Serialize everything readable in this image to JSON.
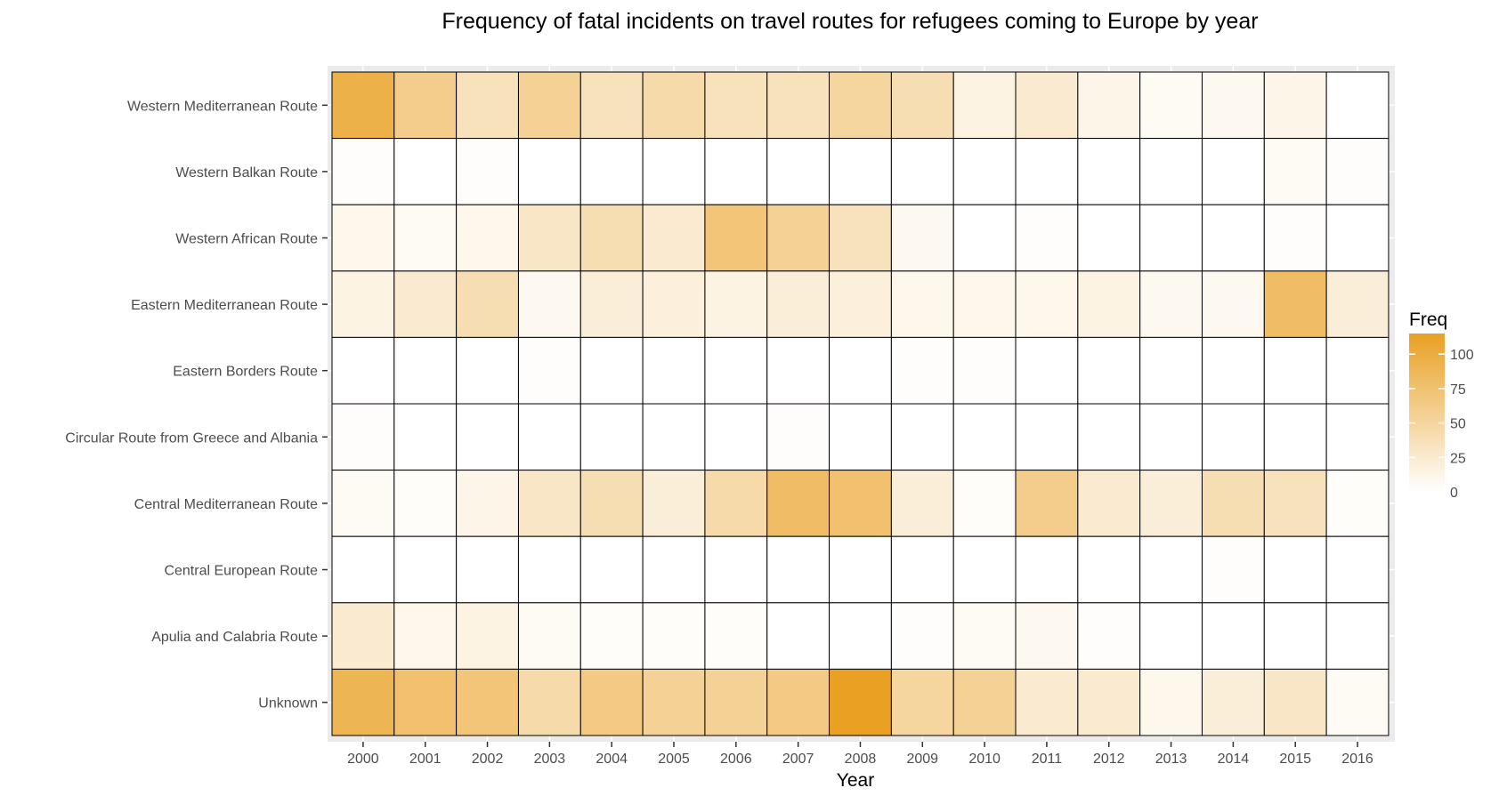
{
  "chart_data": {
    "type": "heatmap",
    "title": "Frequency of fatal incidents on travel routes for refugees coming to Europe by year",
    "xlabel": "Year",
    "ylabel": "",
    "x": [
      "2000",
      "2001",
      "2002",
      "2003",
      "2004",
      "2005",
      "2006",
      "2007",
      "2008",
      "2009",
      "2010",
      "2011",
      "2012",
      "2013",
      "2014",
      "2015",
      "2016"
    ],
    "y": [
      "Western Mediterranean Route",
      "Western Balkan Route",
      "Western African Route",
      "Eastern Mediterranean Route",
      "Eastern Borders Route",
      "Circular Route from Greece and Albania",
      "Central Mediterranean Route",
      "Central European Route",
      "Apulia and Calabria Route",
      "Unknown"
    ],
    "values": [
      [
        95,
        60,
        35,
        55,
        35,
        45,
        35,
        35,
        50,
        40,
        15,
        25,
        12,
        5,
        8,
        12,
        0
      ],
      [
        2,
        0,
        2,
        0,
        0,
        0,
        0,
        0,
        0,
        0,
        0,
        0,
        0,
        0,
        0,
        5,
        2
      ],
      [
        10,
        6,
        10,
        30,
        40,
        25,
        70,
        55,
        35,
        8,
        0,
        2,
        0,
        0,
        0,
        2,
        0
      ],
      [
        15,
        25,
        40,
        8,
        20,
        18,
        15,
        20,
        18,
        10,
        10,
        10,
        15,
        8,
        8,
        80,
        20
      ],
      [
        0,
        0,
        0,
        2,
        0,
        0,
        0,
        0,
        0,
        2,
        2,
        0,
        0,
        0,
        0,
        0,
        0
      ],
      [
        2,
        0,
        0,
        0,
        0,
        0,
        0,
        2,
        0,
        0,
        0,
        0,
        0,
        0,
        0,
        0,
        0
      ],
      [
        5,
        3,
        12,
        30,
        40,
        20,
        45,
        80,
        75,
        20,
        3,
        60,
        25,
        20,
        40,
        35,
        3
      ],
      [
        0,
        0,
        0,
        0,
        0,
        0,
        0,
        0,
        0,
        0,
        0,
        0,
        0,
        0,
        2,
        0,
        0
      ],
      [
        25,
        10,
        15,
        5,
        3,
        3,
        3,
        0,
        0,
        2,
        5,
        8,
        2,
        0,
        0,
        0,
        0
      ],
      [
        90,
        75,
        70,
        45,
        65,
        55,
        55,
        65,
        115,
        50,
        55,
        25,
        25,
        10,
        20,
        30,
        5
      ]
    ],
    "legend": {
      "title": "Freq",
      "position": "right",
      "ticks": [
        0,
        25,
        50,
        75,
        100
      ],
      "tick_labels": [
        "0",
        "25",
        "50",
        "75",
        "100"
      ]
    },
    "scale": {
      "min": 0,
      "max": 115,
      "low_color": "#ffffff",
      "high_color": "#e9a023"
    },
    "colors": {
      "panel_background": "#ebebeb",
      "tile_border": "#000000",
      "grid": "#ffffff"
    },
    "grid": true
  }
}
